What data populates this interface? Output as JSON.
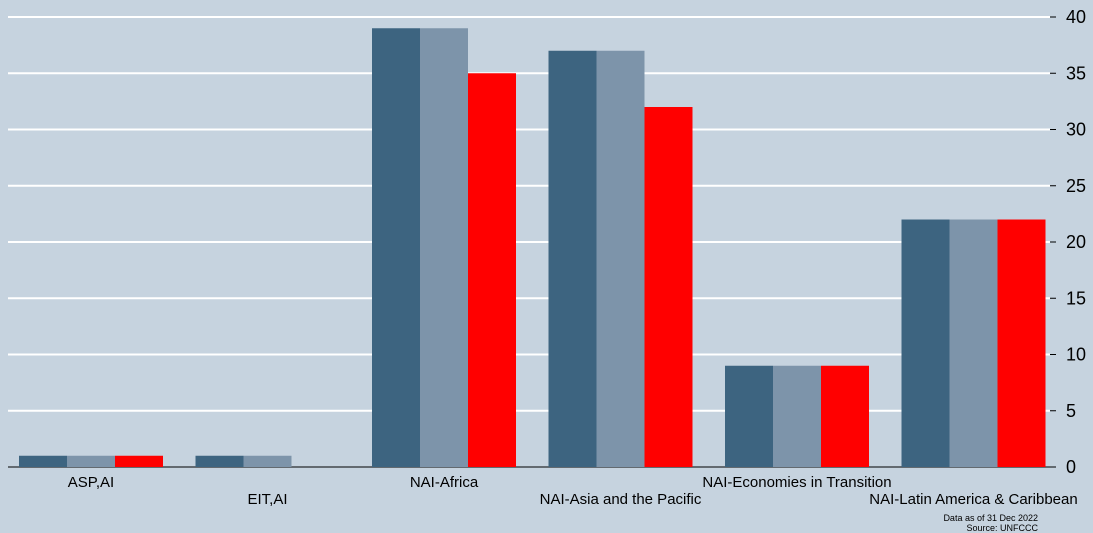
{
  "chart_data": {
    "type": "bar",
    "categories": [
      "ASP,AI",
      "EIT,AI",
      "NAI-Africa",
      "NAI-Asia and the Pacific",
      "NAI-Economies in Transition",
      "NAI-Latin America & Caribbean"
    ],
    "series": [
      {
        "values": [
          1,
          1,
          39,
          37,
          9,
          22
        ],
        "color": "#3d6480"
      },
      {
        "values": [
          1,
          1,
          39,
          37,
          9,
          22
        ],
        "color": "#7d94aa"
      },
      {
        "values": [
          1,
          0,
          35,
          32,
          9,
          22
        ],
        "color": "#ff0000"
      }
    ],
    "ylim": [
      0,
      40
    ],
    "yticks": [
      0,
      5,
      10,
      15,
      20,
      25,
      30,
      35,
      40
    ],
    "y_axis_side": "right",
    "grid": true,
    "title": "",
    "xlabel": "",
    "ylabel": ""
  },
  "footnote": {
    "line1": "Data as of 31 Dec 2022",
    "line2": "Source: UNFCCC"
  },
  "colors": {
    "background": "#c6d3df",
    "gridline": "#ffffff"
  }
}
